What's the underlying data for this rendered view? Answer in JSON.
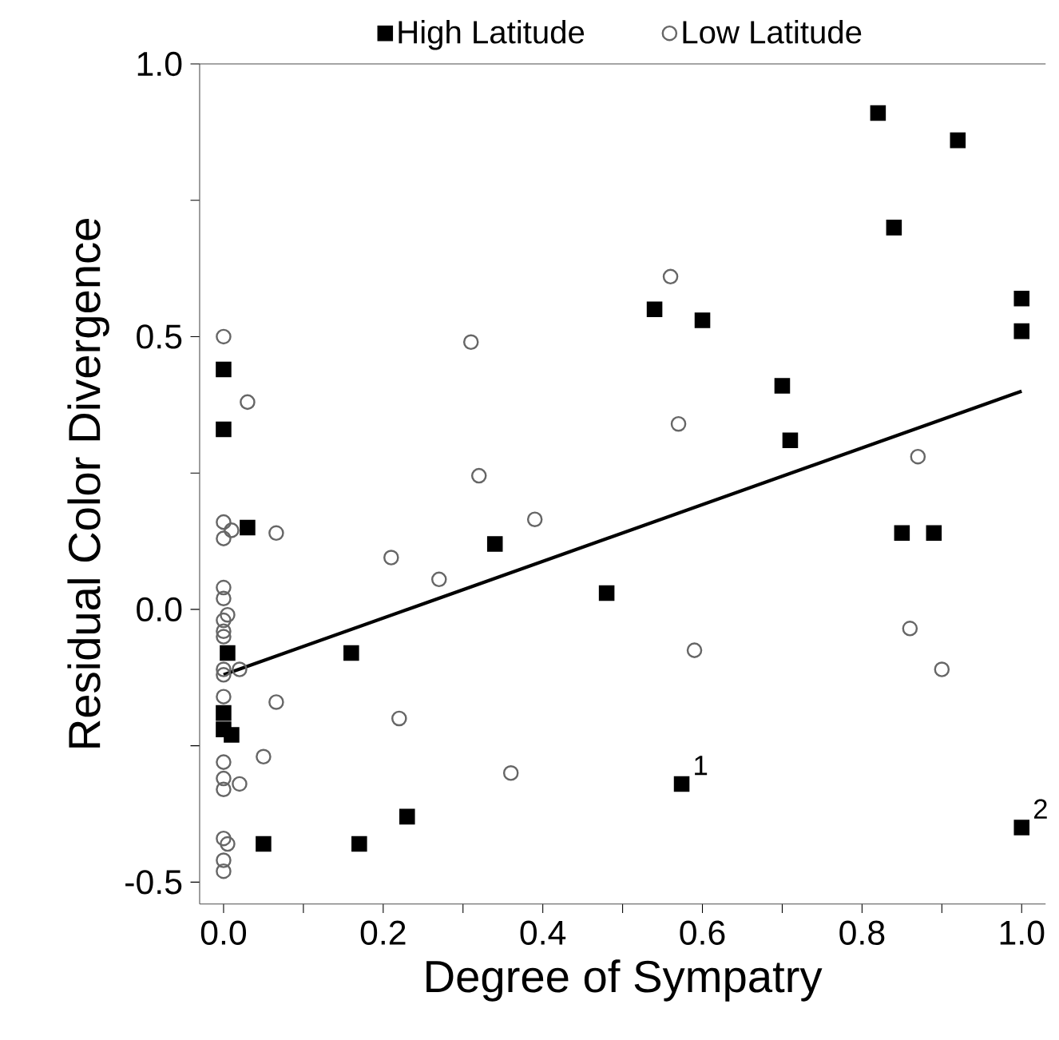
{
  "chart_data": {
    "type": "scatter",
    "xlabel": "Degree of Sympatry",
    "ylabel": "Residual Color Divergence",
    "xlim": [
      -0.03,
      1.03
    ],
    "ylim": [
      -0.54,
      1.0
    ],
    "xticks": [
      {
        "value": 0,
        "label": "0.0"
      },
      {
        "value": 0.1,
        "label": null
      },
      {
        "value": 0.2,
        "label": "0.2"
      },
      {
        "value": 0.3,
        "label": null
      },
      {
        "value": 0.4,
        "label": "0.4"
      },
      {
        "value": 0.5,
        "label": null
      },
      {
        "value": 0.6,
        "label": "0.6"
      },
      {
        "value": 0.7,
        "label": null
      },
      {
        "value": 0.8,
        "label": "0.8"
      },
      {
        "value": 0.9,
        "label": null
      },
      {
        "value": 1.0,
        "label": "1.0"
      }
    ],
    "yticks": [
      {
        "value": -0.5,
        "label": "-0.5"
      },
      {
        "value": -0.25,
        "label": null
      },
      {
        "value": 0,
        "label": "0.0"
      },
      {
        "value": 0.25,
        "label": null
      },
      {
        "value": 0.5,
        "label": "0.5"
      },
      {
        "value": 0.75,
        "label": null
      },
      {
        "value": 1.0,
        "label": "1.0"
      }
    ],
    "legend": "top",
    "grid": false,
    "series": [
      {
        "name": "High Latitude",
        "marker": "square",
        "color": "#000000",
        "x": [
          0,
          0,
          0.03,
          0.005,
          0,
          0,
          0.01,
          0.05,
          0.17,
          0.23,
          0.16,
          0.34,
          0.48,
          0.54,
          0.6,
          0.7,
          0.71,
          0.574,
          0.82,
          0.84,
          0.92,
          0.85,
          0.89,
          1.0,
          1.0,
          1.0
        ],
        "values": [
          0.44,
          0.33,
          0.15,
          -0.08,
          -0.19,
          -0.22,
          -0.23,
          -0.43,
          -0.43,
          -0.38,
          -0.08,
          0.12,
          0.03,
          0.55,
          0.53,
          0.41,
          0.31,
          -0.32,
          0.91,
          0.7,
          0.86,
          0.14,
          0.14,
          0.57,
          0.51,
          -0.4
        ]
      },
      {
        "name": "Low Latitude",
        "marker": "circle",
        "color": "#666666",
        "x": [
          0,
          0.03,
          0,
          0.01,
          0,
          0.066,
          0.21,
          0.27,
          0,
          0,
          0.005,
          0,
          0,
          0,
          0,
          0,
          0.02,
          0,
          0.066,
          0.22,
          0.05,
          0,
          0,
          0,
          0.02,
          0,
          0.005,
          0,
          0,
          0.56,
          0.31,
          0.57,
          0.32,
          0.39,
          0.87,
          0.86,
          0.9,
          0.59,
          0.36
        ],
        "values": [
          0.5,
          0.38,
          0.16,
          0.145,
          0.13,
          0.14,
          0.095,
          0.055,
          0.04,
          0.02,
          -0.01,
          -0.02,
          -0.04,
          -0.05,
          -0.11,
          -0.12,
          -0.11,
          -0.16,
          -0.17,
          -0.2,
          -0.27,
          -0.28,
          -0.31,
          -0.33,
          -0.32,
          -0.42,
          -0.43,
          -0.46,
          -0.48,
          0.61,
          0.49,
          0.34,
          0.245,
          0.165,
          0.28,
          -0.035,
          -0.11,
          -0.075,
          -0.3
        ]
      },
      {
        "type": "line",
        "marker": "none",
        "color": "#000000",
        "x": [
          0,
          1.0
        ],
        "values": [
          -0.12,
          0.4
        ]
      }
    ],
    "annotations": [
      {
        "text": "1",
        "x": 0.574,
        "y": -0.32
      },
      {
        "text": "2",
        "x": 1.0,
        "y": -0.4
      }
    ]
  }
}
